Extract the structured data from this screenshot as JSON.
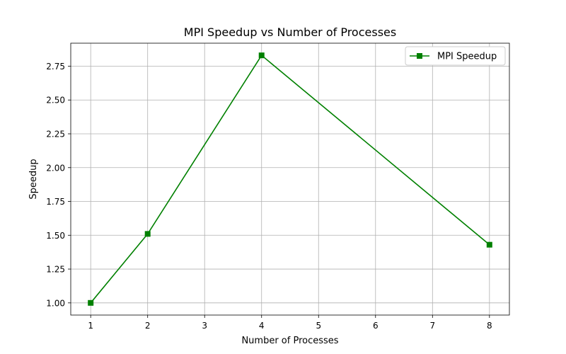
{
  "chart_data": {
    "type": "line",
    "title": "MPI Speedup vs Number of Processes",
    "xlabel": "Number of Processes",
    "ylabel": "Speedup",
    "xlim": [
      0.65,
      8.35
    ],
    "ylim": [
      0.91,
      2.92
    ],
    "xticks": [
      1,
      2,
      3,
      4,
      5,
      6,
      7,
      8
    ],
    "yticks": [
      1.0,
      1.25,
      1.5,
      1.75,
      2.0,
      2.25,
      2.5,
      2.75
    ],
    "grid": true,
    "legend_position": "top-right",
    "series": [
      {
        "name": "MPI Speedup",
        "color": "#008000",
        "marker": "square",
        "x": [
          1,
          2,
          4,
          8
        ],
        "y": [
          1.0,
          1.51,
          2.83,
          1.43
        ]
      }
    ]
  }
}
